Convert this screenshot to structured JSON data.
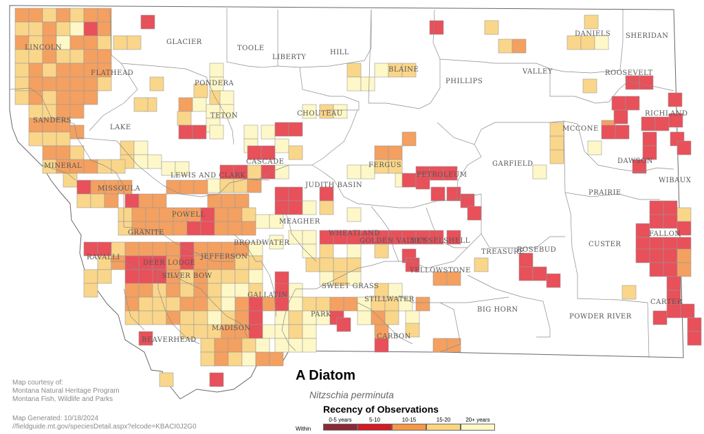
{
  "counties": [
    "GLACIER",
    "TOOLE",
    "LIBERTY",
    "HILL",
    "DANIELS",
    "SHERIDAN",
    "LINCOLN",
    "FLATHEAD",
    "PONDERA",
    "BLAINE",
    "PHILLIPS",
    "VALLEY",
    "ROOSEVELT",
    "TETON",
    "CHOUTEAU",
    "RICHLAND",
    "SANDERS",
    "LAKE",
    "MCCONE",
    "CASCADE",
    "FERGUS",
    "PETROLEUM",
    "GARFIELD",
    "DAWSON",
    "MINERAL",
    "LEWIS AND CLARK",
    "JUDITH BASIN",
    "WIBAUX",
    "MISSOULA",
    "PRAIRIE",
    "POWELL",
    "MEAGHER",
    "FALLON",
    "GRANITE",
    "WHEATLAND",
    "GOLDEN VALLEY",
    "MUSSELSHELL",
    "CUSTER",
    "RAVALLI",
    "DEER LODGE",
    "JEFFERSON",
    "BROADWATER",
    "TREASURE",
    "ROSEBUD",
    "SILVER BOW",
    "YELLOWSTONE",
    "SWEET GRASS",
    "GALLATIN",
    "STILLWATER",
    "CARTER",
    "PARK",
    "BIG HORN",
    "POWDER RIVER",
    "MADISON",
    "CARBON",
    "BEAVERHEAD"
  ],
  "species": {
    "common_name": "A Diatom",
    "scientific_name": "Nitzschia perminuta"
  },
  "credits": {
    "line1": "Map courtesy of:",
    "line2": "Montana Natural Heritage Program",
    "line3": "Montana Fish, Wildlife and Parks",
    "generated": "Map Generated: 10/18/2024",
    "url": "//fieldguide.mt.gov/speciesDetail.aspx?elcode=KBACI0J2G0"
  },
  "legend": {
    "title": "Recency of Observations",
    "within_label": "Within",
    "bins": [
      {
        "label": "0-5 years",
        "color": "#8b2a35"
      },
      {
        "label": "5-10",
        "color": "#d41c24"
      },
      {
        "label": "10-15",
        "color": "#f59847"
      },
      {
        "label": "15-20",
        "color": "#fbd580"
      },
      {
        "label": "20+ years",
        "color": "#fef8c6"
      }
    ]
  },
  "cell_colors": {
    "A": "#e8505a",
    "B": "#f4a060",
    "C": "#fad68a",
    "D": "#fef8c8"
  },
  "observation_cells": [
    [
      "B",
      22,
      12
    ],
    [
      "B",
      42,
      12
    ],
    [
      "C",
      62,
      12
    ],
    [
      "B",
      82,
      12
    ],
    [
      "C",
      102,
      12
    ],
    [
      "B",
      122,
      12
    ],
    [
      "B",
      142,
      12
    ],
    [
      "A",
      205,
      22
    ],
    [
      "A",
      625,
      30
    ],
    [
      "C",
      705,
      30
    ],
    [
      "C",
      850,
      22
    ],
    [
      "C",
      22,
      32
    ],
    [
      "C",
      42,
      32
    ],
    [
      "B",
      62,
      32
    ],
    [
      "C",
      82,
      32
    ],
    [
      "D",
      102,
      32
    ],
    [
      "A",
      122,
      32
    ],
    [
      "B",
      142,
      32
    ],
    [
      "C",
      165,
      52
    ],
    [
      "C",
      185,
      52
    ],
    [
      "C",
      825,
      52
    ],
    [
      "C",
      845,
      52
    ],
    [
      "D",
      865,
      52
    ],
    [
      "C",
      725,
      57
    ],
    [
      "B",
      745,
      57
    ],
    [
      "B",
      22,
      52
    ],
    [
      "C",
      42,
      52
    ],
    [
      "B",
      62,
      52
    ],
    [
      "D",
      82,
      52
    ],
    [
      "B",
      102,
      52
    ],
    [
      "B",
      122,
      52
    ],
    [
      "C",
      142,
      52
    ],
    [
      "D",
      305,
      92
    ],
    [
      "D",
      305,
      112
    ],
    [
      "C",
      505,
      92
    ],
    [
      "D",
      545,
      92
    ],
    [
      "C",
      565,
      92
    ],
    [
      "C",
      585,
      92
    ],
    [
      "C",
      22,
      72
    ],
    [
      "C",
      42,
      72
    ],
    [
      "B",
      62,
      72
    ],
    [
      "C",
      82,
      72
    ],
    [
      "C",
      102,
      72
    ],
    [
      "B",
      122,
      72
    ],
    [
      "B",
      142,
      72
    ],
    [
      "A",
      910,
      110
    ],
    [
      "A",
      930,
      110
    ],
    [
      "C",
      848,
      115
    ],
    [
      "C",
      22,
      92
    ],
    [
      "B",
      42,
      92
    ],
    [
      "C",
      62,
      92
    ],
    [
      "B",
      82,
      92
    ],
    [
      "B",
      102,
      92
    ],
    [
      "B",
      122,
      92
    ],
    [
      "B",
      142,
      92
    ],
    [
      "C",
      282,
      122
    ],
    [
      "C",
      305,
      132
    ],
    [
      "D",
      320,
      132
    ],
    [
      "D",
      505,
      112
    ],
    [
      "D",
      525,
      112
    ],
    [
      "C",
      22,
      112
    ],
    [
      "B",
      42,
      112
    ],
    [
      "B",
      62,
      112
    ],
    [
      "B",
      82,
      112
    ],
    [
      "B",
      102,
      112
    ],
    [
      "B",
      122,
      112
    ],
    [
      "C",
      142,
      112
    ],
    [
      "C",
      218,
      112
    ],
    [
      "C",
      208,
      142
    ],
    [
      "C",
      195,
      142
    ],
    [
      "B",
      260,
      142
    ],
    [
      "D",
      280,
      142
    ],
    [
      "D",
      300,
      152
    ],
    [
      "D",
      320,
      152
    ],
    [
      "D",
      440,
      152
    ],
    [
      "C",
      465,
      152
    ],
    [
      "D",
      485,
      152
    ],
    [
      "A",
      890,
      140
    ],
    [
      "A",
      910,
      140
    ],
    [
      "A",
      972,
      135
    ],
    [
      "C",
      22,
      132
    ],
    [
      "B",
      42,
      132
    ],
    [
      "C",
      62,
      132
    ],
    [
      "B",
      82,
      132
    ],
    [
      "B",
      102,
      132
    ],
    [
      "B",
      122,
      132
    ],
    [
      "C",
      258,
      162
    ],
    [
      "D",
      300,
      172
    ],
    [
      "A",
      260,
      182
    ],
    [
      "A",
      280,
      182
    ],
    [
      "D",
      305,
      182
    ],
    [
      "B",
      875,
      175
    ],
    [
      "A",
      893,
      160
    ],
    [
      "A",
      933,
      170
    ],
    [
      "A",
      953,
      170
    ],
    [
      "A",
      973,
      165
    ],
    [
      "D",
      355,
      182
    ],
    [
      "D",
      380,
      182
    ],
    [
      "A",
      400,
      178
    ],
    [
      "A",
      420,
      178
    ],
    [
      "C",
      42,
      152
    ],
    [
      "C",
      62,
      152
    ],
    [
      "B",
      82,
      152
    ],
    [
      "B",
      102,
      152
    ],
    [
      "B",
      42,
      172
    ],
    [
      "B",
      62,
      172
    ],
    [
      "B",
      82,
      172
    ],
    [
      "C",
      82,
      192
    ],
    [
      "B",
      102,
      182
    ],
    [
      "C",
      42,
      192
    ],
    [
      "C",
      62,
      192
    ],
    [
      "A",
      875,
      182
    ],
    [
      "A",
      895,
      182
    ],
    [
      "A",
      935,
      192
    ],
    [
      "A",
      975,
      192
    ],
    [
      "C",
      800,
      178
    ],
    [
      "C",
      800,
      198
    ],
    [
      "C",
      800,
      218
    ],
    [
      "B",
      62,
      212
    ],
    [
      "B",
      82,
      212
    ],
    [
      "C",
      102,
      212
    ],
    [
      "C",
      175,
      205
    ],
    [
      "C",
      175,
      225
    ],
    [
      "D",
      195,
      205
    ],
    [
      "D",
      195,
      225
    ],
    [
      "D",
      215,
      225
    ],
    [
      "D",
      235,
      235
    ],
    [
      "D",
      255,
      235
    ],
    [
      "D",
      355,
      202
    ],
    [
      "A",
      360,
      212
    ],
    [
      "A",
      380,
      212
    ],
    [
      "D",
      400,
      202
    ],
    [
      "C",
      420,
      212
    ],
    [
      "B",
      545,
      212
    ],
    [
      "B",
      565,
      212
    ],
    [
      "B",
      585,
      192
    ],
    [
      "D",
      855,
      205
    ],
    [
      "A",
      935,
      212
    ],
    [
      "A",
      985,
      205
    ],
    [
      "C",
      62,
      232
    ],
    [
      "B",
      82,
      232
    ],
    [
      "B",
      102,
      232
    ],
    [
      "B",
      122,
      232
    ],
    [
      "C",
      142,
      232
    ],
    [
      "C",
      162,
      232
    ],
    [
      "A",
      320,
      240
    ],
    [
      "A",
      340,
      240
    ],
    [
      "C",
      360,
      240
    ],
    [
      "A",
      380,
      240
    ],
    [
      "D",
      300,
      260
    ],
    [
      "C",
      320,
      260
    ],
    [
      "C",
      340,
      260
    ],
    [
      "B",
      360,
      260
    ],
    [
      "D",
      400,
      240
    ],
    [
      "D",
      505,
      240
    ],
    [
      "D",
      525,
      240
    ],
    [
      "C",
      545,
      232
    ],
    [
      "C",
      565,
      232
    ],
    [
      "D",
      575,
      252
    ],
    [
      "A",
      605,
      242
    ],
    [
      "A",
      625,
      242
    ],
    [
      "A",
      645,
      242
    ],
    [
      "D",
      775,
      240
    ],
    [
      "A",
      920,
      232
    ],
    [
      "C",
      92,
      252
    ],
    [
      "A",
      112,
      262
    ],
    [
      "B",
      132,
      262
    ],
    [
      "B",
      152,
      262
    ],
    [
      "B",
      172,
      262
    ],
    [
      "A",
      182,
      282
    ],
    [
      "B",
      202,
      282
    ],
    [
      "B",
      222,
      282
    ],
    [
      "B",
      242,
      262
    ],
    [
      "B",
      262,
      262
    ],
    [
      "B",
      282,
      262
    ],
    [
      "B",
      302,
      282
    ],
    [
      "B",
      322,
      282
    ],
    [
      "B",
      342,
      282
    ],
    [
      "A",
      400,
      272
    ],
    [
      "A",
      420,
      272
    ],
    [
      "A",
      465,
      272
    ],
    [
      "A",
      585,
      252
    ],
    [
      "A",
      605,
      255
    ],
    [
      "A",
      627,
      272
    ],
    [
      "A",
      650,
      272
    ],
    [
      "A",
      670,
      282
    ],
    [
      "A",
      945,
      292
    ],
    [
      "A",
      965,
      292
    ],
    [
      "C",
      985,
      302
    ],
    [
      "C",
      112,
      282
    ],
    [
      "C",
      132,
      282
    ],
    [
      "B",
      152,
      282
    ],
    [
      "C",
      172,
      302
    ],
    [
      "B",
      192,
      302
    ],
    [
      "B",
      212,
      302
    ],
    [
      "B",
      232,
      302
    ],
    [
      "B",
      252,
      302
    ],
    [
      "B",
      272,
      302
    ],
    [
      "A",
      292,
      302
    ],
    [
      "B",
      312,
      302
    ],
    [
      "B",
      332,
      302
    ],
    [
      "C",
      352,
      302
    ],
    [
      "A",
      400,
      292
    ],
    [
      "A",
      420,
      292
    ],
    [
      "D",
      440,
      292
    ],
    [
      "C",
      465,
      292
    ],
    [
      "D",
      505,
      302
    ],
    [
      "A",
      680,
      300
    ],
    [
      "A",
      945,
      312
    ],
    [
      "A",
      965,
      312
    ],
    [
      "A",
      985,
      322
    ],
    [
      "A",
      925,
      325
    ],
    [
      "C",
      172,
      322
    ],
    [
      "B",
      192,
      322
    ],
    [
      "B",
      212,
      322
    ],
    [
      "B",
      232,
      322
    ],
    [
      "B",
      252,
      322
    ],
    [
      "A",
      272,
      322
    ],
    [
      "A",
      292,
      322
    ],
    [
      "B",
      312,
      322
    ],
    [
      "B",
      332,
      322
    ],
    [
      "B",
      352,
      322
    ],
    [
      "D",
      372,
      312
    ],
    [
      "D",
      392,
      312
    ],
    [
      "D",
      420,
      335
    ],
    [
      "D",
      440,
      335
    ],
    [
      "A",
      465,
      335
    ],
    [
      "A",
      485,
      335
    ],
    [
      "A",
      505,
      335
    ],
    [
      "A",
      525,
      335
    ],
    [
      "A",
      545,
      335
    ],
    [
      "A",
      565,
      335
    ],
    [
      "A",
      585,
      335
    ],
    [
      "A",
      605,
      335
    ],
    [
      "A",
      625,
      335
    ],
    [
      "A",
      650,
      335
    ],
    [
      "A",
      925,
      345
    ],
    [
      "A",
      945,
      345
    ],
    [
      "A",
      965,
      345
    ],
    [
      "A",
      985,
      345
    ],
    [
      "A",
      122,
      352
    ],
    [
      "A",
      142,
      352
    ],
    [
      "C",
      162,
      352
    ],
    [
      "B",
      182,
      352
    ],
    [
      "B",
      202,
      352
    ],
    [
      "B",
      222,
      352
    ],
    [
      "B",
      242,
      352
    ],
    [
      "A",
      262,
      352
    ],
    [
      "B",
      282,
      352
    ],
    [
      "B",
      302,
      352
    ],
    [
      "B",
      322,
      352
    ],
    [
      "B",
      342,
      352
    ],
    [
      "D",
      362,
      352
    ],
    [
      "D",
      392,
      342
    ],
    [
      "D",
      440,
      355
    ],
    [
      "C",
      465,
      355
    ],
    [
      "D",
      505,
      355
    ],
    [
      "C",
      545,
      355
    ],
    [
      "A",
      585,
      362
    ],
    [
      "A",
      925,
      362
    ],
    [
      "A",
      945,
      362
    ],
    [
      "A",
      965,
      362
    ],
    [
      "B",
      985,
      362
    ],
    [
      "C",
      142,
      372
    ],
    [
      "B",
      162,
      372
    ],
    [
      "A",
      182,
      372
    ],
    [
      "A",
      202,
      372
    ],
    [
      "A",
      222,
      372
    ],
    [
      "B",
      242,
      372
    ],
    [
      "A",
      262,
      372
    ],
    [
      "B",
      282,
      372
    ],
    [
      "B",
      302,
      372
    ],
    [
      "B",
      322,
      372
    ],
    [
      "C",
      342,
      372
    ],
    [
      "C",
      362,
      372
    ],
    [
      "C",
      445,
      375
    ],
    [
      "C",
      465,
      375
    ],
    [
      "C",
      485,
      375
    ],
    [
      "C",
      505,
      375
    ],
    [
      "A",
      590,
      375
    ],
    [
      "C",
      690,
      375
    ],
    [
      "A",
      755,
      368
    ],
    [
      "A",
      755,
      388
    ],
    [
      "A",
      775,
      388
    ],
    [
      "A",
      795,
      398
    ],
    [
      "B",
      985,
      382
    ],
    [
      "A",
      965,
      382
    ],
    [
      "A",
      945,
      382
    ],
    [
      "C",
      122,
      392
    ],
    [
      "C",
      142,
      392
    ],
    [
      "A",
      182,
      392
    ],
    [
      "A",
      202,
      392
    ],
    [
      "A",
      222,
      392
    ],
    [
      "B",
      242,
      392
    ],
    [
      "C",
      262,
      392
    ],
    [
      "B",
      282,
      392
    ],
    [
      "C",
      302,
      392
    ],
    [
      "C",
      322,
      392
    ],
    [
      "C",
      342,
      392
    ],
    [
      "D",
      362,
      392
    ],
    [
      "A",
      400,
      395
    ],
    [
      "D",
      465,
      395
    ],
    [
      "C",
      485,
      395
    ],
    [
      "D",
      505,
      395
    ],
    [
      "B",
      630,
      395
    ],
    [
      "B",
      650,
      395
    ],
    [
      "A",
      970,
      402
    ],
    [
      "C",
      122,
      412
    ],
    [
      "B",
      182,
      412
    ],
    [
      "B",
      202,
      412
    ],
    [
      "C",
      222,
      412
    ],
    [
      "B",
      242,
      412
    ],
    [
      "C",
      262,
      412
    ],
    [
      "B",
      282,
      412
    ],
    [
      "C",
      302,
      412
    ],
    [
      "D",
      322,
      412
    ],
    [
      "D",
      342,
      412
    ],
    [
      "C",
      362,
      412
    ],
    [
      "A",
      400,
      412
    ],
    [
      "D",
      420,
      412
    ],
    [
      "C",
      545,
      412
    ],
    [
      "D",
      565,
      412
    ],
    [
      "C",
      905,
      415
    ],
    [
      "A",
      970,
      422
    ],
    [
      "B",
      182,
      432
    ],
    [
      "C",
      202,
      432
    ],
    [
      "C",
      222,
      432
    ],
    [
      "C",
      242,
      432
    ],
    [
      "B",
      262,
      432
    ],
    [
      "B",
      282,
      432
    ],
    [
      "C",
      302,
      432
    ],
    [
      "D",
      322,
      432
    ],
    [
      "B",
      342,
      432
    ],
    [
      "A",
      362,
      432
    ],
    [
      "B",
      382,
      432
    ],
    [
      "A",
      400,
      432
    ],
    [
      "D",
      420,
      432
    ],
    [
      "C",
      440,
      432
    ],
    [
      "C",
      460,
      432
    ],
    [
      "B",
      480,
      432
    ],
    [
      "B",
      500,
      432
    ],
    [
      "D",
      520,
      432
    ],
    [
      "C",
      540,
      432
    ],
    [
      "C",
      560,
      432
    ],
    [
      "D",
      580,
      432
    ],
    [
      "B",
      605,
      432
    ],
    [
      "A",
      970,
      442
    ],
    [
      "A",
      990,
      442
    ],
    [
      "C",
      182,
      452
    ],
    [
      "C",
      202,
      452
    ],
    [
      "C",
      222,
      452
    ],
    [
      "B",
      242,
      452
    ],
    [
      "C",
      262,
      452
    ],
    [
      "C",
      282,
      452
    ],
    [
      "D",
      302,
      452
    ],
    [
      "C",
      322,
      452
    ],
    [
      "B",
      342,
      452
    ],
    [
      "A",
      362,
      452
    ],
    [
      "D",
      400,
      452
    ],
    [
      "C",
      420,
      452
    ],
    [
      "D",
      440,
      452
    ],
    [
      "D",
      460,
      452
    ],
    [
      "A",
      480,
      452
    ],
    [
      "D",
      520,
      452
    ],
    [
      "B",
      540,
      452
    ],
    [
      "C",
      560,
      452
    ],
    [
      "D",
      590,
      452
    ],
    [
      "A",
      950,
      452
    ],
    [
      "A",
      202,
      482
    ],
    [
      "C",
      262,
      472
    ],
    [
      "C",
      282,
      472
    ],
    [
      "C",
      302,
      472
    ],
    [
      "B",
      322,
      472
    ],
    [
      "B",
      342,
      472
    ],
    [
      "A",
      362,
      472
    ],
    [
      "D",
      382,
      472
    ],
    [
      "D",
      400,
      472
    ],
    [
      "C",
      420,
      472
    ],
    [
      "D",
      440,
      472
    ],
    [
      "A",
      490,
      462
    ],
    [
      "B",
      545,
      472
    ],
    [
      "C",
      590,
      470
    ],
    [
      "A",
      1000,
      462
    ],
    [
      "A",
      1000,
      482
    ],
    [
      "C",
      292,
      492
    ],
    [
      "B",
      312,
      492
    ],
    [
      "B",
      332,
      492
    ],
    [
      "C",
      352,
      492
    ],
    [
      "D",
      372,
      492
    ],
    [
      "D",
      400,
      492
    ],
    [
      "D",
      420,
      492
    ],
    [
      "D",
      440,
      492
    ],
    [
      "A",
      545,
      492
    ],
    [
      "B",
      630,
      492
    ],
    [
      "B",
      650,
      492
    ],
    [
      "C",
      292,
      512
    ],
    [
      "B",
      312,
      512
    ],
    [
      "C",
      332,
      512
    ],
    [
      "D",
      352,
      512
    ],
    [
      "B",
      372,
      512
    ],
    [
      "B",
      392,
      512
    ],
    [
      "A",
      305,
      542
    ],
    [
      "C",
      232,
      542
    ]
  ]
}
